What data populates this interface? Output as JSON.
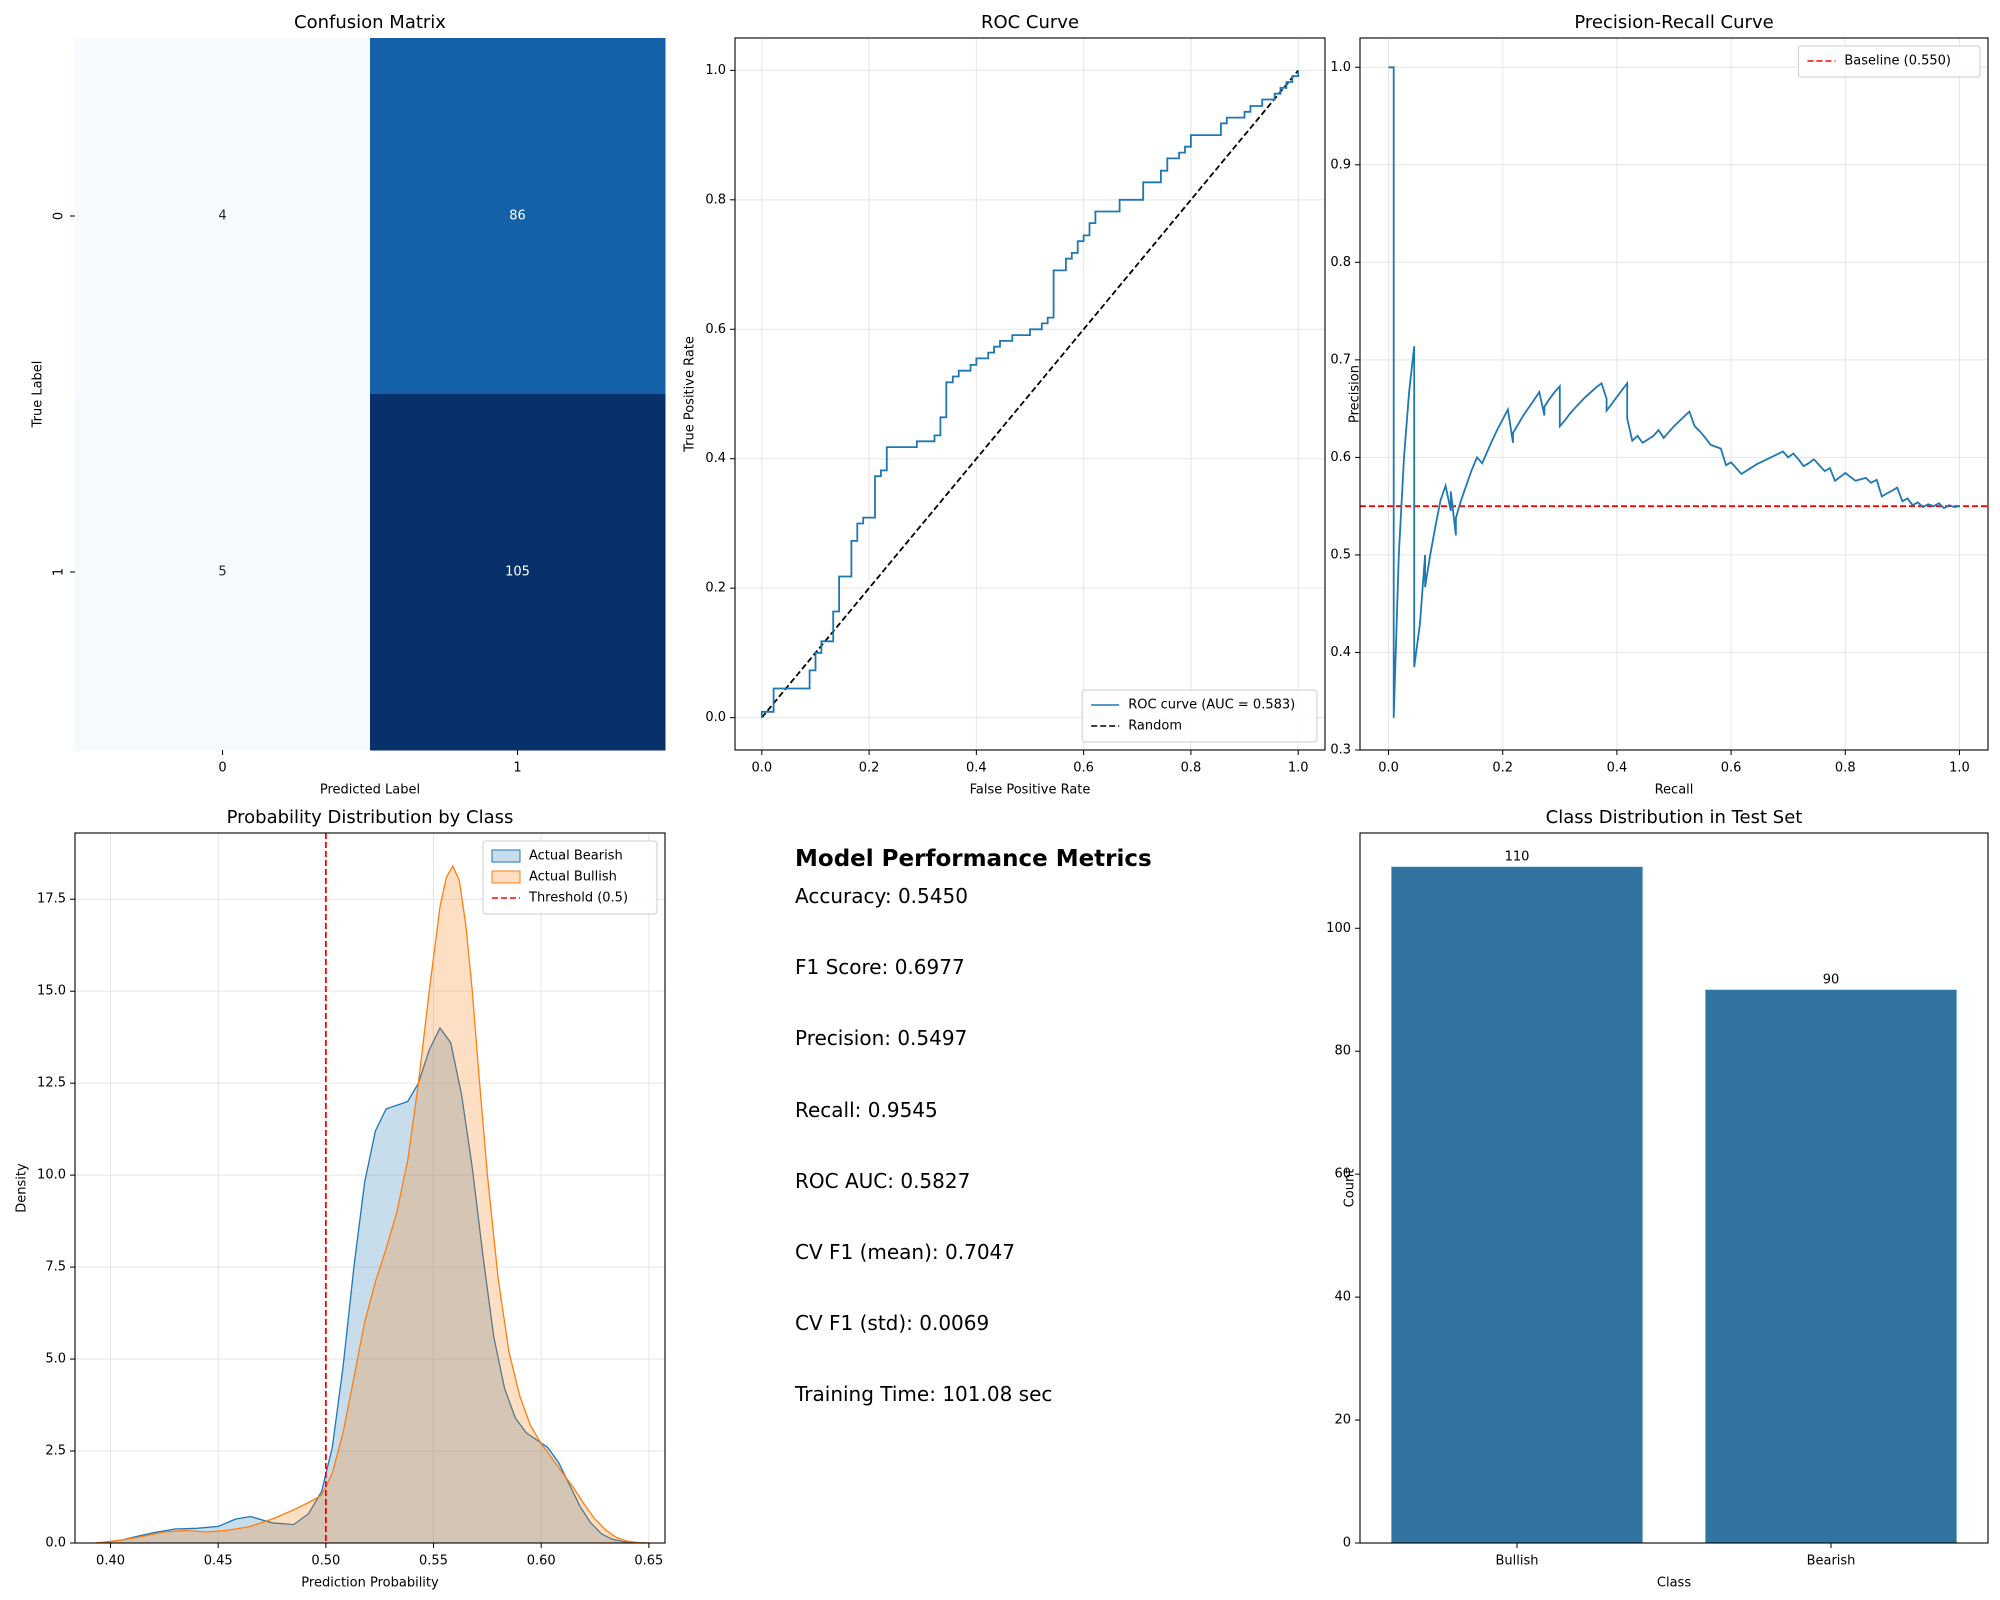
{
  "chart_data": [
    {
      "type": "heatmap",
      "title": "Confusion Matrix",
      "xlabel": "Predicted Label",
      "ylabel": "True Label",
      "x_categories": [
        "0",
        "1"
      ],
      "y_categories": [
        "0",
        "1"
      ],
      "values": [
        [
          4,
          86
        ],
        [
          5,
          105
        ]
      ],
      "colormap": "Blues",
      "colorbar": false
    },
    {
      "type": "line",
      "title": "ROC Curve",
      "xlabel": "False Positive Rate",
      "ylabel": "True Positive Rate",
      "xlim": [
        -0.05,
        1.05
      ],
      "ylim": [
        -0.05,
        1.05
      ],
      "xticks": [
        "0.0",
        "0.2",
        "0.4",
        "0.6",
        "0.8",
        "1.0"
      ],
      "yticks": [
        "0.0",
        "0.2",
        "0.4",
        "0.6",
        "0.8",
        "1.0"
      ],
      "grid": true,
      "legend_position": "lower right",
      "series": [
        {
          "name": "ROC curve (AUC = 0.583)",
          "color": "#1f77b4",
          "style": "solid",
          "x": [
            0.0,
            0.0,
            0.022,
            0.022,
            0.089,
            0.089,
            0.1,
            0.1,
            0.111,
            0.111,
            0.133,
            0.133,
            0.144,
            0.144,
            0.167,
            0.167,
            0.178,
            0.178,
            0.189,
            0.189,
            0.211,
            0.211,
            0.222,
            0.222,
            0.233,
            0.233,
            0.244,
            0.244,
            0.289,
            0.289,
            0.322,
            0.322,
            0.333,
            0.333,
            0.344,
            0.344,
            0.356,
            0.356,
            0.367,
            0.367,
            0.389,
            0.389,
            0.4,
            0.4,
            0.422,
            0.422,
            0.433,
            0.433,
            0.444,
            0.444,
            0.456,
            0.456,
            0.467,
            0.467,
            0.478,
            0.478,
            0.5,
            0.5,
            0.522,
            0.522,
            0.533,
            0.533,
            0.544,
            0.544,
            0.567,
            0.567,
            0.578,
            0.578,
            0.589,
            0.589,
            0.6,
            0.6,
            0.611,
            0.611,
            0.622,
            0.622,
            0.656,
            0.656,
            0.667,
            0.667,
            0.711,
            0.711,
            0.744,
            0.744,
            0.756,
            0.756,
            0.778,
            0.778,
            0.789,
            0.789,
            0.8,
            0.8,
            0.856,
            0.856,
            0.867,
            0.867,
            0.9,
            0.9,
            0.911,
            0.911,
            0.933,
            0.933,
            0.956,
            0.956,
            0.967,
            0.967,
            0.978,
            0.978,
            0.989,
            0.989,
            1.0,
            1.0
          ],
          "y": [
            0.0,
            0.009,
            0.009,
            0.045,
            0.045,
            0.073,
            0.073,
            0.1,
            0.1,
            0.118,
            0.118,
            0.164,
            0.164,
            0.218,
            0.218,
            0.273,
            0.273,
            0.3,
            0.3,
            0.309,
            0.309,
            0.373,
            0.373,
            0.382,
            0.382,
            0.418,
            0.418,
            0.418,
            0.418,
            0.427,
            0.427,
            0.436,
            0.436,
            0.464,
            0.464,
            0.518,
            0.518,
            0.527,
            0.527,
            0.536,
            0.536,
            0.545,
            0.545,
            0.555,
            0.555,
            0.564,
            0.564,
            0.573,
            0.573,
            0.582,
            0.582,
            0.582,
            0.582,
            0.591,
            0.591,
            0.591,
            0.591,
            0.6,
            0.6,
            0.609,
            0.609,
            0.618,
            0.618,
            0.691,
            0.691,
            0.709,
            0.709,
            0.718,
            0.718,
            0.736,
            0.736,
            0.745,
            0.745,
            0.764,
            0.764,
            0.782,
            0.782,
            0.782,
            0.782,
            0.8,
            0.8,
            0.827,
            0.827,
            0.845,
            0.845,
            0.864,
            0.864,
            0.873,
            0.873,
            0.882,
            0.882,
            0.9,
            0.9,
            0.918,
            0.918,
            0.927,
            0.927,
            0.936,
            0.936,
            0.945,
            0.945,
            0.955,
            0.955,
            0.964,
            0.964,
            0.973,
            0.973,
            0.982,
            0.982,
            0.991,
            0.991,
            1.0
          ]
        },
        {
          "name": "Random",
          "color": "#000000",
          "style": "dashed",
          "x": [
            0,
            1
          ],
          "y": [
            0,
            1
          ]
        }
      ]
    },
    {
      "type": "line",
      "title": "Precision-Recall Curve",
      "xlabel": "Recall",
      "ylabel": "Precision",
      "xlim": [
        -0.05,
        1.05
      ],
      "ylim": [
        0.3,
        1.03
      ],
      "xticks": [
        "0.0",
        "0.2",
        "0.4",
        "0.6",
        "0.8",
        "1.0"
      ],
      "yticks": [
        "0.3",
        "0.4",
        "0.5",
        "0.6",
        "0.7",
        "0.8",
        "0.9",
        "1.0"
      ],
      "grid": true,
      "legend_position": "upper right",
      "series": [
        {
          "name": "",
          "color": "#1f77b4",
          "style": "solid",
          "x": [
            0.0,
            0.009,
            0.009,
            0.018,
            0.027,
            0.036,
            0.045,
            0.045,
            0.055,
            0.064,
            0.064,
            0.073,
            0.082,
            0.091,
            0.1,
            0.109,
            0.109,
            0.118,
            0.118,
            0.127,
            0.136,
            0.145,
            0.155,
            0.164,
            0.173,
            0.182,
            0.191,
            0.2,
            0.209,
            0.218,
            0.218,
            0.236,
            0.255,
            0.264,
            0.273,
            0.273,
            0.282,
            0.291,
            0.3,
            0.3,
            0.309,
            0.318,
            0.327,
            0.345,
            0.364,
            0.373,
            0.382,
            0.382,
            0.391,
            0.4,
            0.409,
            0.418,
            0.418,
            0.427,
            0.436,
            0.445,
            0.464,
            0.473,
            0.482,
            0.5,
            0.518,
            0.527,
            0.536,
            0.545,
            0.555,
            0.564,
            0.582,
            0.591,
            0.6,
            0.618,
            0.645,
            0.673,
            0.691,
            0.7,
            0.709,
            0.718,
            0.727,
            0.736,
            0.745,
            0.764,
            0.773,
            0.782,
            0.8,
            0.818,
            0.836,
            0.845,
            0.855,
            0.864,
            0.873,
            0.882,
            0.891,
            0.9,
            0.909,
            0.918,
            0.927,
            0.936,
            0.945,
            0.955,
            0.964,
            0.973,
            0.982,
            0.991,
            1.0
          ],
          "y": [
            1.0,
            1.0,
            0.333,
            0.5,
            0.6,
            0.667,
            0.714,
            0.385,
            0.429,
            0.5,
            0.467,
            0.5,
            0.529,
            0.556,
            0.571,
            0.545,
            0.565,
            0.52,
            0.538,
            0.556,
            0.571,
            0.586,
            0.6,
            0.594,
            0.606,
            0.618,
            0.629,
            0.639,
            0.649,
            0.615,
            0.625,
            0.643,
            0.659,
            0.667,
            0.643,
            0.652,
            0.66,
            0.667,
            0.673,
            0.632,
            0.638,
            0.645,
            0.651,
            0.662,
            0.672,
            0.676,
            0.66,
            0.648,
            0.655,
            0.662,
            0.669,
            0.676,
            0.64,
            0.617,
            0.622,
            0.615,
            0.622,
            0.628,
            0.62,
            0.632,
            0.642,
            0.647,
            0.632,
            0.627,
            0.62,
            0.613,
            0.609,
            0.592,
            0.595,
            0.583,
            0.593,
            0.601,
            0.606,
            0.6,
            0.604,
            0.598,
            0.591,
            0.594,
            0.598,
            0.586,
            0.589,
            0.576,
            0.584,
            0.576,
            0.579,
            0.574,
            0.577,
            0.56,
            0.563,
            0.566,
            0.569,
            0.555,
            0.558,
            0.551,
            0.554,
            0.549,
            0.552,
            0.55,
            0.553,
            0.548,
            0.551,
            0.549,
            0.55
          ]
        },
        {
          "name": "Baseline (0.550)",
          "color": "#ff0000",
          "style": "dashed",
          "y_constant": 0.55
        }
      ]
    },
    {
      "type": "area",
      "title": "Probability Distribution by Class",
      "xlabel": "Prediction Probability",
      "ylabel": "Density",
      "xlim": [
        0.3835,
        0.6575
      ],
      "ylim": [
        0,
        19.3
      ],
      "xticks": [
        "0.40",
        "0.45",
        "0.50",
        "0.55",
        "0.60",
        "0.65"
      ],
      "yticks": [
        "0.0",
        "2.5",
        "5.0",
        "7.5",
        "10.0",
        "12.5",
        "15.0",
        "17.5"
      ],
      "grid": true,
      "legend_position": "upper right",
      "threshold": {
        "name": "Threshold (0.5)",
        "x": 0.5,
        "color": "#ff0000"
      },
      "series": [
        {
          "name": "Actual Bearish",
          "color": "#1f77b4",
          "fill_alpha": 0.25,
          "x": [
            0.395,
            0.405,
            0.41,
            0.42,
            0.43,
            0.44,
            0.45,
            0.458,
            0.465,
            0.475,
            0.485,
            0.492,
            0.498,
            0.503,
            0.508,
            0.513,
            0.518,
            0.523,
            0.528,
            0.533,
            0.538,
            0.543,
            0.548,
            0.553,
            0.558,
            0.563,
            0.568,
            0.573,
            0.578,
            0.583,
            0.588,
            0.593,
            0.598,
            0.603,
            0.608,
            0.613,
            0.618,
            0.623,
            0.628,
            0.633,
            0.638,
            0.643,
            0.648
          ],
          "y": [
            0.0,
            0.08,
            0.15,
            0.28,
            0.38,
            0.4,
            0.45,
            0.65,
            0.72,
            0.55,
            0.5,
            0.8,
            1.4,
            2.6,
            4.8,
            7.5,
            9.8,
            11.2,
            11.8,
            11.9,
            12.0,
            12.5,
            13.4,
            14.0,
            13.6,
            12.2,
            10.2,
            7.8,
            5.6,
            4.2,
            3.4,
            3.0,
            2.8,
            2.6,
            2.2,
            1.6,
            1.0,
            0.55,
            0.25,
            0.1,
            0.04,
            0.01,
            0.0
          ]
        },
        {
          "name": "Actual Bullish",
          "color": "#ff7f0e",
          "fill_alpha": 0.25,
          "x": [
            0.393,
            0.405,
            0.415,
            0.425,
            0.435,
            0.445,
            0.455,
            0.465,
            0.475,
            0.485,
            0.492,
            0.498,
            0.503,
            0.508,
            0.513,
            0.518,
            0.523,
            0.528,
            0.533,
            0.538,
            0.543,
            0.548,
            0.553,
            0.556,
            0.559,
            0.562,
            0.565,
            0.568,
            0.571,
            0.575,
            0.58,
            0.585,
            0.59,
            0.595,
            0.6,
            0.605,
            0.61,
            0.615,
            0.62,
            0.625,
            0.63,
            0.635,
            0.64,
            0.645,
            0.65
          ],
          "y": [
            0.0,
            0.08,
            0.18,
            0.3,
            0.34,
            0.3,
            0.35,
            0.45,
            0.65,
            0.9,
            1.1,
            1.3,
            1.9,
            3.0,
            4.5,
            6.0,
            7.1,
            8.0,
            9.0,
            10.4,
            12.5,
            15.0,
            17.3,
            18.1,
            18.4,
            18.0,
            16.8,
            15.0,
            12.8,
            10.0,
            7.2,
            5.2,
            4.0,
            3.2,
            2.7,
            2.3,
            1.9,
            1.5,
            1.05,
            0.65,
            0.35,
            0.15,
            0.05,
            0.01,
            0.0
          ]
        }
      ]
    },
    {
      "type": "bar",
      "title": "Class Distribution in Test Set",
      "xlabel": "Class",
      "ylabel": "Count",
      "categories": [
        "Bullish",
        "Bearish"
      ],
      "values": [
        110,
        90
      ],
      "value_labels": [
        "110",
        "90"
      ],
      "ylim": [
        0,
        115.5
      ],
      "yticks": [
        "0",
        "20",
        "40",
        "60",
        "80",
        "100"
      ],
      "grid": false,
      "color": "#3274a1"
    }
  ],
  "metrics_panel": {
    "title": "Model Performance Metrics",
    "lines": [
      "Accuracy: 0.5450",
      "F1 Score: 0.6977",
      "Precision: 0.5497",
      "Recall: 0.9545",
      "ROC AUC: 0.5827",
      "CV F1 (mean): 0.7047",
      "CV F1 (std): 0.0069",
      "Training Time: 101.08 sec"
    ]
  }
}
